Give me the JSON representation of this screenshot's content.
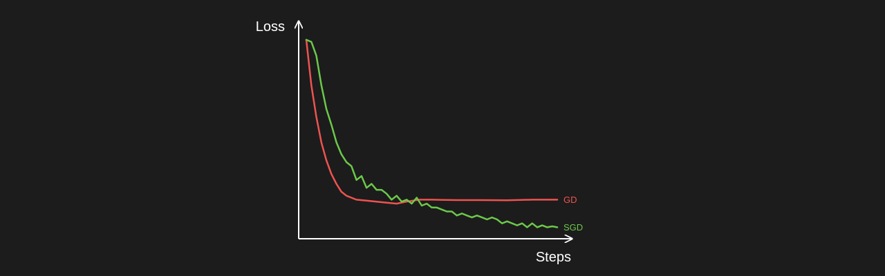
{
  "colors": {
    "background": "#1c1c1c",
    "axis": "#ffffff",
    "text": "#ffffff"
  },
  "chart_data": {
    "type": "line",
    "title": "",
    "xlabel": "Steps",
    "ylabel": "Loss",
    "xlim": [
      0,
      100
    ],
    "ylim": [
      0,
      1
    ],
    "grid": false,
    "legend": "inline-right",
    "series": [
      {
        "name": "GD",
        "color": "#ef5350",
        "x": [
          0,
          2,
          4,
          6,
          8,
          10,
          12,
          14,
          16,
          18,
          20,
          24,
          28,
          32,
          36,
          40,
          45,
          50,
          60,
          70,
          80,
          90,
          100
        ],
        "y": [
          0.98,
          0.75,
          0.59,
          0.46,
          0.37,
          0.3,
          0.25,
          0.21,
          0.19,
          0.18,
          0.17,
          0.165,
          0.16,
          0.155,
          0.15,
          0.16,
          0.17,
          0.17,
          0.168,
          0.168,
          0.167,
          0.17,
          0.17
        ]
      },
      {
        "name": "SGD",
        "color": "#6cc94a",
        "x": [
          0,
          2,
          4,
          6,
          8,
          10,
          12,
          14,
          16,
          18,
          20,
          22,
          24,
          26,
          28,
          30,
          32,
          34,
          36,
          38,
          40,
          42,
          44,
          46,
          48,
          50,
          52,
          54,
          56,
          58,
          60,
          62,
          64,
          66,
          68,
          70,
          72,
          74,
          76,
          78,
          80,
          82,
          84,
          86,
          88,
          90,
          92,
          94,
          96,
          98,
          100
        ],
        "y": [
          0.98,
          0.97,
          0.9,
          0.75,
          0.63,
          0.55,
          0.46,
          0.4,
          0.36,
          0.34,
          0.27,
          0.29,
          0.23,
          0.25,
          0.22,
          0.22,
          0.2,
          0.17,
          0.19,
          0.16,
          0.17,
          0.15,
          0.18,
          0.14,
          0.15,
          0.13,
          0.13,
          0.12,
          0.11,
          0.11,
          0.09,
          0.1,
          0.09,
          0.08,
          0.09,
          0.08,
          0.07,
          0.08,
          0.07,
          0.05,
          0.06,
          0.05,
          0.04,
          0.05,
          0.03,
          0.05,
          0.03,
          0.04,
          0.03,
          0.035,
          0.03
        ]
      }
    ]
  }
}
